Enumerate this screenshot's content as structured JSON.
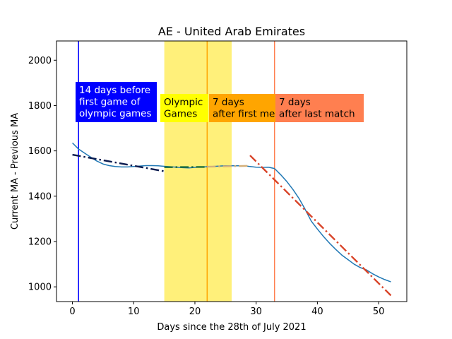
{
  "chart_data": {
    "type": "line",
    "title": "AE - United Arab Emirates",
    "xlabel": "Days since the 28th of July 2021",
    "ylabel": "Current MA - Previous MA",
    "xlim": [
      -2.6,
      54.6
    ],
    "ylim": [
      935,
      2085
    ],
    "xticks": [
      0,
      10,
      20,
      30,
      40,
      50
    ],
    "yticks": [
      1000,
      1200,
      1400,
      1600,
      1800,
      2000
    ],
    "xtick_labels": [
      "0",
      "10",
      "20",
      "30",
      "40",
      "50"
    ],
    "ytick_labels": [
      "1000",
      "1200",
      "1400",
      "1600",
      "1800",
      "2000"
    ],
    "grid": false,
    "shaded_regions": [
      {
        "x0": 15,
        "x1": 26,
        "color": "#fff07a"
      }
    ],
    "vertical_lines": [
      {
        "x": 1,
        "color": "#0000ff"
      },
      {
        "x": 22,
        "color": "#ffa500"
      },
      {
        "x": 33,
        "color": "#ff7f50"
      }
    ],
    "series": [
      {
        "color": "#1f77b4",
        "style": "solid",
        "x": [
          0,
          1,
          2,
          3,
          4,
          5,
          6,
          7,
          8,
          9,
          10,
          11,
          12,
          13,
          14,
          15,
          16,
          17,
          18,
          19,
          20,
          21,
          22,
          23,
          24,
          25,
          26,
          27,
          28,
          29,
          30,
          31,
          32,
          33,
          34,
          35,
          36,
          37,
          38,
          39,
          40,
          41,
          42,
          43,
          44,
          45,
          46,
          47,
          48,
          49,
          50,
          51,
          52
        ],
        "y": [
          1635,
          1608,
          1590,
          1572,
          1555,
          1542,
          1535,
          1531,
          1529,
          1529,
          1531,
          1533,
          1535,
          1535,
          1534,
          1532,
          1530,
          1528,
          1526,
          1525,
          1527,
          1529,
          1530,
          1531,
          1533,
          1534,
          1534,
          1534,
          1534,
          1531,
          1528,
          1527,
          1528,
          1522,
          1495,
          1465,
          1430,
          1390,
          1342,
          1290,
          1255,
          1222,
          1192,
          1165,
          1140,
          1120,
          1100,
          1085,
          1075,
          1058,
          1044,
          1032,
          1022
        ]
      },
      {
        "color": "#0a1a4e",
        "style": "dashdot",
        "x": [
          0,
          15
        ],
        "y": [
          1583,
          1510
        ]
      },
      {
        "color": "#1a6a3a",
        "style": "dashdot",
        "x": [
          15,
          22
        ],
        "y": [
          1528,
          1529
        ]
      },
      {
        "color": "#d4b07a",
        "style": "dashdot",
        "x": [
          22,
          29
        ],
        "y": [
          1530,
          1534
        ]
      },
      {
        "color": "#d9452a",
        "style": "dashdot",
        "x": [
          29,
          52
        ],
        "y": [
          1580,
          962
        ]
      }
    ],
    "annotations": [
      {
        "text_lines": [
          "14 days before",
          "first game of",
          "olympic games"
        ],
        "bg": "#0000ff",
        "fg": "#ffffff"
      },
      {
        "text_lines": [
          "Olympic",
          "Games"
        ],
        "bg": "#ffff00",
        "fg": "#000000"
      },
      {
        "text_lines": [
          "7 days",
          "after first me"
        ],
        "bg": "#ffa500",
        "fg": "#000000"
      },
      {
        "text_lines": [
          "7 days",
          "after last match"
        ],
        "bg": "#ff7f50",
        "fg": "#000000"
      }
    ]
  }
}
